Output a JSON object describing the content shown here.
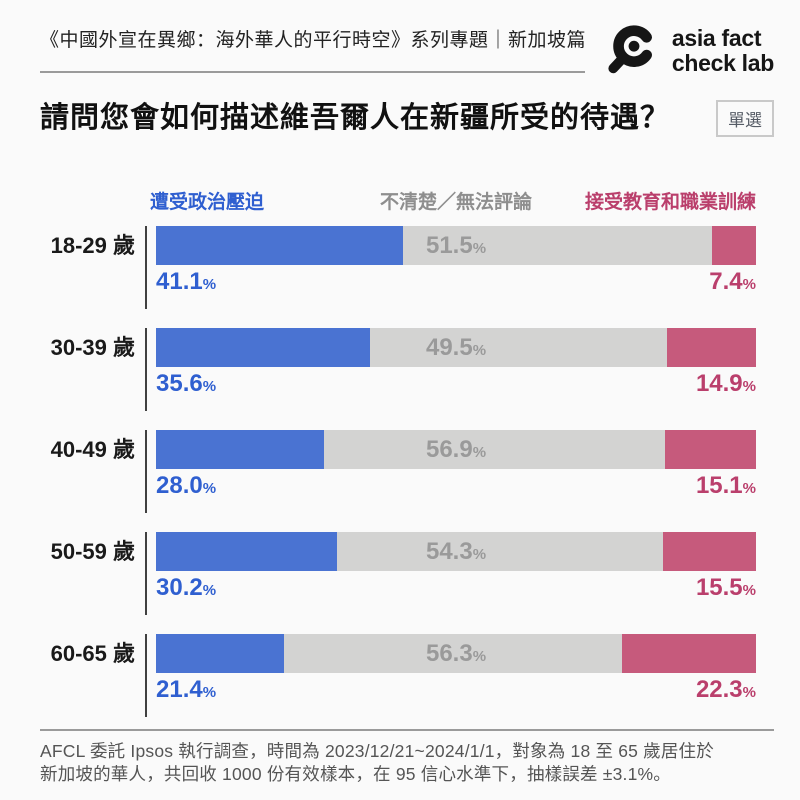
{
  "header": {
    "series_title": "《中國外宣在異鄉：海外華人的平行時空》系列專題｜新加坡篇",
    "logo_line1": "asia fact",
    "logo_line2": "check lab"
  },
  "question": {
    "title": "請問您會如何描述維吾爾人在新疆所受的待遇？",
    "badge": "單選"
  },
  "chart_data": {
    "type": "bar",
    "stacked": true,
    "orientation": "horizontal",
    "title": "請問您會如何描述維吾爾人在新疆所受的待遇？",
    "categories": [
      "18-29 歲",
      "30-39 歲",
      "40-49 歲",
      "50-59 歲",
      "60-65 歲"
    ],
    "series": [
      {
        "name": "遭受政治壓迫",
        "color": "#4a73d2",
        "label_color": "#2f5fd0",
        "values": [
          41.1,
          35.6,
          28.0,
          30.2,
          21.4
        ]
      },
      {
        "name": "不清楚／無法評論",
        "color": "#d3d3d2",
        "label_color": "#9a9a9a",
        "values": [
          51.5,
          49.5,
          56.9,
          54.3,
          56.3
        ]
      },
      {
        "name": "接受教育和職業訓練",
        "color": "#c65a7c",
        "label_color": "#ba3f6c",
        "values": [
          7.4,
          14.9,
          15.1,
          15.5,
          22.3
        ]
      }
    ],
    "value_suffix": "%",
    "xlim": [
      0,
      100
    ],
    "legend_position": "top",
    "grid": false
  },
  "footer": {
    "line1": "AFCL 委託 Ipsos 執行調查，時間為 2023/12/21~2024/1/1，對象為 18 至 65 歲居住於",
    "line2": "新加坡的華人，共回收 1000 份有效樣本，在 95 信心水準下，抽樣誤差 ±3.1%。"
  }
}
